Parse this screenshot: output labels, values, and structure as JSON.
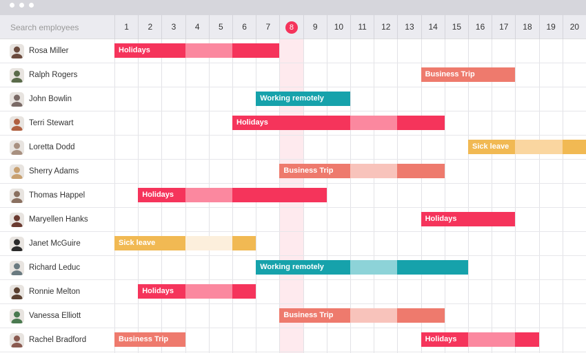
{
  "search": {
    "placeholder": "Search employees"
  },
  "days": [
    "1",
    "2",
    "3",
    "4",
    "5",
    "6",
    "7",
    "8",
    "9",
    "10",
    "11",
    "12",
    "13",
    "14",
    "15",
    "16",
    "17",
    "18",
    "19",
    "20"
  ],
  "today": 8,
  "event_colors": {
    "Holidays": {
      "dark": "#f5345b",
      "light": "#fb889f"
    },
    "Business Trip": {
      "dark": "#ee7a6d",
      "light": "#f8c3bb"
    },
    "Working remotely": {
      "dark": "#16a2ab",
      "light": "#8dd3d8"
    },
    "Sick leave": {
      "dark": "#f1b953",
      "light": "#fad6a0"
    }
  },
  "employees": [
    {
      "name": "Rosa Miller",
      "avatar": "#6b4b3e",
      "events": [
        {
          "label": "Holidays",
          "segments": [
            [
              1,
              3,
              "dark"
            ],
            [
              4,
              5,
              "light"
            ],
            [
              6,
              7,
              "dark"
            ]
          ]
        }
      ]
    },
    {
      "name": "Ralph Rogers",
      "avatar": "#5a6b4a",
      "events": [
        {
          "label": "Business Trip",
          "segments": [
            [
              14,
              17,
              "dark"
            ]
          ]
        }
      ]
    },
    {
      "name": "John Bowlin",
      "avatar": "#7a6a66",
      "events": [
        {
          "label": "Working remotely",
          "segments": [
            [
              7,
              10,
              "dark"
            ]
          ]
        }
      ]
    },
    {
      "name": "Terri Stewart",
      "avatar": "#b06040",
      "events": [
        {
          "label": "Holidays",
          "segments": [
            [
              6,
              10,
              "dark"
            ],
            [
              11,
              12,
              "light"
            ],
            [
              13,
              14,
              "dark"
            ]
          ]
        }
      ]
    },
    {
      "name": "Loretta Dodd",
      "avatar": "#a89080",
      "events": [
        {
          "label": "Sick leave",
          "segments": [
            [
              16,
              17,
              "dark"
            ],
            [
              18,
              19,
              "light"
            ],
            [
              20,
              20,
              "dark"
            ]
          ]
        }
      ]
    },
    {
      "name": "Sherry Adams",
      "avatar": "#c8a070",
      "events": [
        {
          "label": "Business Trip",
          "segments": [
            [
              8,
              10,
              "dark"
            ],
            [
              11,
              12,
              "light"
            ],
            [
              13,
              14,
              "dark"
            ]
          ]
        }
      ]
    },
    {
      "name": "Thomas Happel",
      "avatar": "#8a7060",
      "events": [
        {
          "label": "Holidays",
          "segments": [
            [
              2,
              3,
              "dark"
            ],
            [
              4,
              5,
              "light"
            ],
            [
              6,
              9,
              "dark"
            ]
          ]
        }
      ]
    },
    {
      "name": "Maryellen Hanks",
      "avatar": "#6a3a30",
      "events": [
        {
          "label": "Holidays",
          "segments": [
            [
              14,
              17,
              "dark"
            ]
          ]
        }
      ]
    },
    {
      "name": "Janet McGuire",
      "avatar": "#2a2a2a",
      "events": [
        {
          "label": "Sick leave",
          "segments": [
            [
              1,
              3,
              "dark"
            ],
            [
              4,
              5,
              "pale"
            ],
            [
              6,
              6,
              "dark"
            ]
          ]
        }
      ]
    },
    {
      "name": "Richard Leduc",
      "avatar": "#6a7a80",
      "events": [
        {
          "label": "Working remotely",
          "segments": [
            [
              7,
              10,
              "dark"
            ],
            [
              11,
              12,
              "light"
            ],
            [
              13,
              15,
              "dark"
            ]
          ]
        }
      ]
    },
    {
      "name": "Ronnie Melton",
      "avatar": "#5a4030",
      "events": [
        {
          "label": "Holidays",
          "segments": [
            [
              2,
              3,
              "dark"
            ],
            [
              4,
              5,
              "light"
            ],
            [
              6,
              6,
              "dark"
            ]
          ]
        }
      ]
    },
    {
      "name": "Vanessa Elliott",
      "avatar": "#4a7a50",
      "events": [
        {
          "label": "Business Trip",
          "segments": [
            [
              8,
              10,
              "dark"
            ],
            [
              11,
              12,
              "light"
            ],
            [
              13,
              14,
              "dark"
            ]
          ]
        }
      ]
    },
    {
      "name": "Rachel Bradford",
      "avatar": "#8a5a50",
      "events": [
        {
          "label": "Business Trip",
          "segments": [
            [
              1,
              3,
              "dark"
            ]
          ]
        },
        {
          "label": "Holidays",
          "segments": [
            [
              14,
              15,
              "dark"
            ],
            [
              16,
              17,
              "light"
            ],
            [
              18,
              18,
              "dark"
            ]
          ]
        }
      ]
    }
  ]
}
